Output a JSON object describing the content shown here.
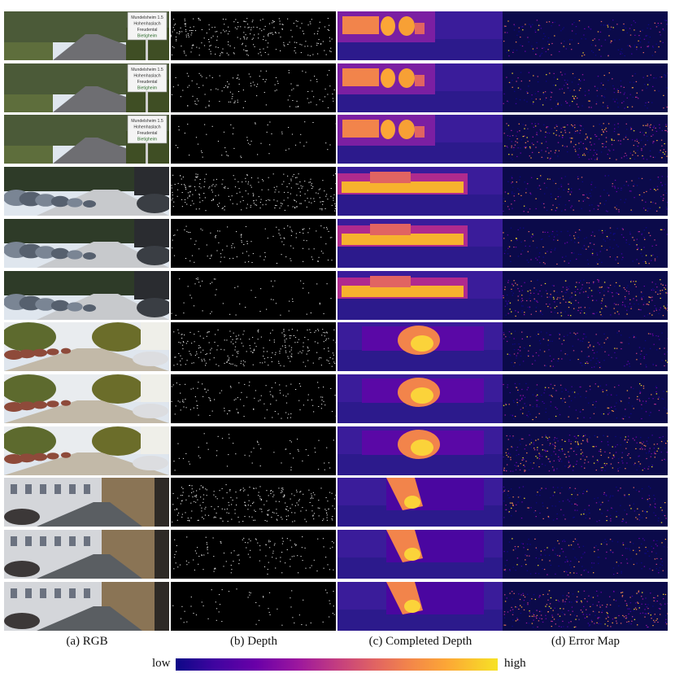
{
  "captions": {
    "rgb": "(a) RGB",
    "depth": "(b) Depth",
    "completed": "(c) Completed Depth",
    "error": "(d) Error Map"
  },
  "colorbar": {
    "low": "low",
    "high": "high",
    "colors": [
      "#0d0887",
      "#6a00a8",
      "#c33d80",
      "#f2844b",
      "#f7e225"
    ]
  },
  "rows": [
    {
      "scene": "suburban-road-with-sign",
      "sign_text": [
        "Mundelsheim 1.5",
        "Hohenhaslach",
        "Freudental",
        "Bietigheim"
      ]
    },
    {
      "scene": "suburban-road-with-sign",
      "sign_text": [
        "Mundelsheim 1.5",
        "Hohenhaslach",
        "Freudental",
        "Bietigheim"
      ]
    },
    {
      "scene": "suburban-road-with-sign",
      "sign_text": [
        "Mundelsheim 1.5",
        "Hohenhaslach",
        "Freudental",
        "Bietigheim"
      ]
    },
    {
      "scene": "parked-cars-street"
    },
    {
      "scene": "parked-cars-street"
    },
    {
      "scene": "parked-cars-street"
    },
    {
      "scene": "sunny-residential-street"
    },
    {
      "scene": "sunny-residential-street"
    },
    {
      "scene": "sunny-residential-street"
    },
    {
      "scene": "narrow-town-street"
    },
    {
      "scene": "narrow-town-street"
    },
    {
      "scene": "narrow-town-street"
    }
  ]
}
